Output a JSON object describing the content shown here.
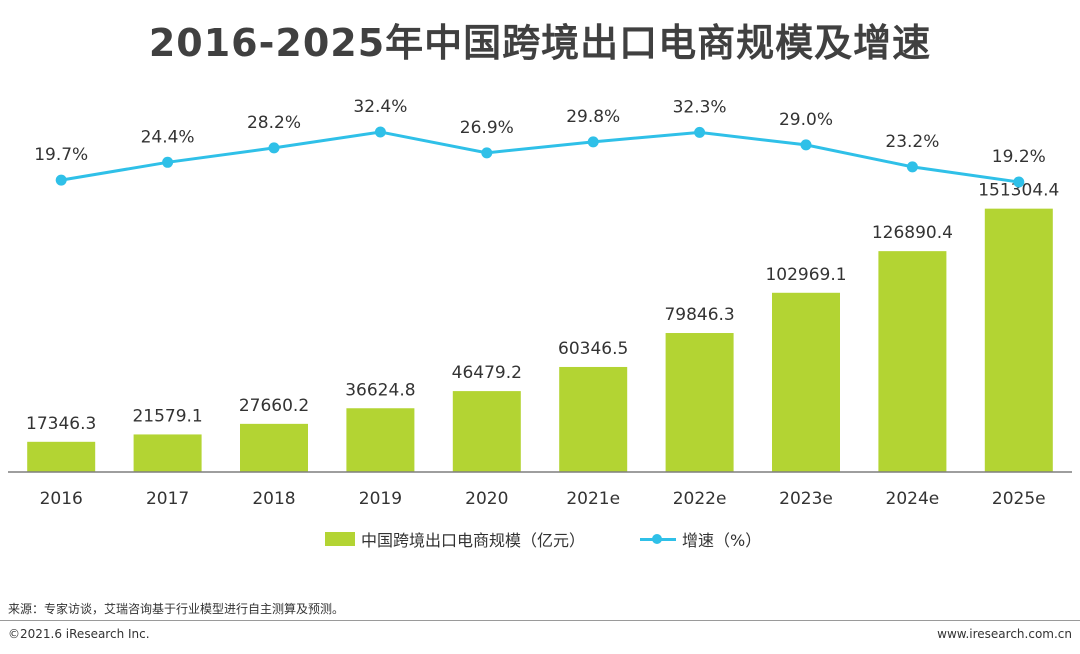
{
  "chart_data": {
    "type": "bar",
    "title": "2016-2025年中国跨境出口电商规模及增速",
    "categories": [
      "2016",
      "2017",
      "2018",
      "2019",
      "2020",
      "2021e",
      "2022e",
      "2023e",
      "2024e",
      "2025e"
    ],
    "series": [
      {
        "name": "中国跨境出口电商规模（亿元）",
        "type": "bar",
        "color": "#b3d433",
        "values": [
          17346.3,
          21579.1,
          27660.2,
          36624.8,
          46479.2,
          60346.5,
          79846.3,
          102969.1,
          126890.4,
          151304.4
        ],
        "labels": [
          "17346.3",
          "21579.1",
          "27660.2",
          "36624.8",
          "46479.2",
          "60346.5",
          "79846.3",
          "102969.1",
          "126890.4",
          "151304.4"
        ]
      },
      {
        "name": "增速（%）",
        "type": "line",
        "color": "#2fc0e8",
        "values": [
          19.7,
          24.4,
          28.2,
          32.4,
          26.9,
          29.8,
          32.3,
          29.0,
          23.2,
          19.2
        ],
        "labels": [
          "19.7%",
          "24.4%",
          "28.2%",
          "32.4%",
          "26.9%",
          "29.8%",
          "32.3%",
          "29.0%",
          "23.2%",
          "19.2%"
        ]
      }
    ],
    "xlabel": "",
    "ylabel": "",
    "ylim": [
      0,
      185000
    ],
    "y2lim": [
      4,
      34
    ],
    "grid": false,
    "legend": "bottom-center"
  },
  "source_note": "来源：专家访谈，艾瑞咨询基于行业模型进行自主测算及预测。",
  "footer": {
    "copyright": "©2021.6 iResearch Inc.",
    "website": "www.iresearch.com.cn"
  }
}
